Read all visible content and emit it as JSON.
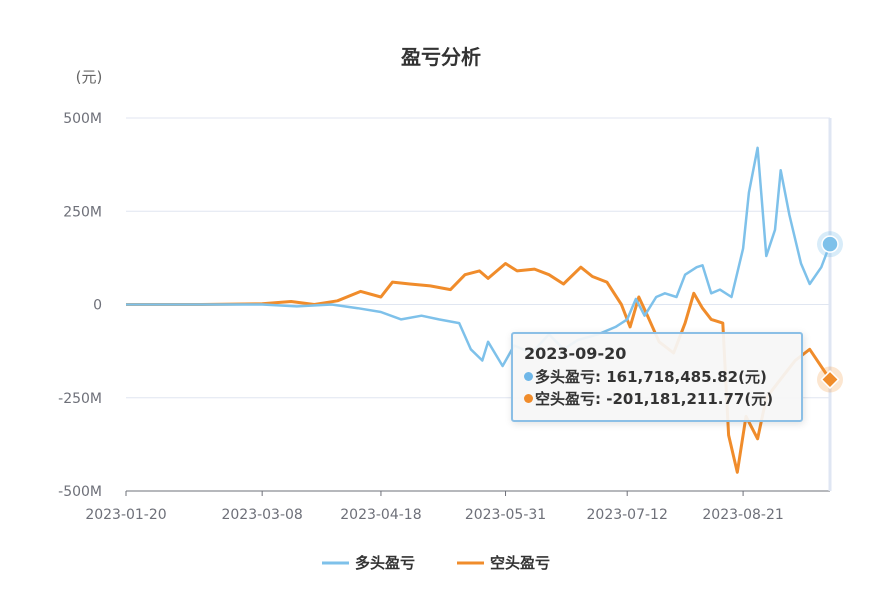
{
  "chart_data": {
    "type": "line",
    "title": "盈亏分析",
    "unit_label": "(元)",
    "ylim": [
      -500000000,
      500000000
    ],
    "y_ticks": [
      {
        "value": 500000000,
        "label": "500M"
      },
      {
        "value": 250000000,
        "label": "250M"
      },
      {
        "value": 0,
        "label": "0"
      },
      {
        "value": -250000000,
        "label": "-250M"
      },
      {
        "value": -500000000,
        "label": "-500M"
      }
    ],
    "x_range": [
      "2023-01-20",
      "2023-09-20"
    ],
    "x_ticks": [
      "2023-01-20",
      "2023-03-08",
      "2023-04-18",
      "2023-05-31",
      "2023-07-12",
      "2023-08-21"
    ],
    "series": [
      {
        "name": "多头盈亏",
        "color": "#7ec1ea",
        "points": [
          [
            "2023-01-20",
            0
          ],
          [
            "2023-02-15",
            0
          ],
          [
            "2023-03-08",
            0
          ],
          [
            "2023-03-20",
            -5000000
          ],
          [
            "2023-04-01",
            0
          ],
          [
            "2023-04-10",
            -10000000
          ],
          [
            "2023-04-18",
            -20000000
          ],
          [
            "2023-04-25",
            -40000000
          ],
          [
            "2023-05-02",
            -30000000
          ],
          [
            "2023-05-08",
            -40000000
          ],
          [
            "2023-05-15",
            -50000000
          ],
          [
            "2023-05-19",
            -120000000
          ],
          [
            "2023-05-23",
            -150000000
          ],
          [
            "2023-05-25",
            -100000000
          ],
          [
            "2023-05-30",
            -165000000
          ],
          [
            "2023-06-03",
            -110000000
          ],
          [
            "2023-06-09",
            -130000000
          ],
          [
            "2023-06-15",
            -80000000
          ],
          [
            "2023-06-20",
            -120000000
          ],
          [
            "2023-06-25",
            -95000000
          ],
          [
            "2023-07-02",
            -80000000
          ],
          [
            "2023-07-08",
            -60000000
          ],
          [
            "2023-07-12",
            -40000000
          ],
          [
            "2023-07-15",
            15000000
          ],
          [
            "2023-07-18",
            -30000000
          ],
          [
            "2023-07-22",
            20000000
          ],
          [
            "2023-07-25",
            30000000
          ],
          [
            "2023-07-29",
            20000000
          ],
          [
            "2023-08-01",
            80000000
          ],
          [
            "2023-08-05",
            100000000
          ],
          [
            "2023-08-07",
            105000000
          ],
          [
            "2023-08-10",
            30000000
          ],
          [
            "2023-08-13",
            40000000
          ],
          [
            "2023-08-17",
            20000000
          ],
          [
            "2023-08-21",
            150000000
          ],
          [
            "2023-08-23",
            300000000
          ],
          [
            "2023-08-26",
            420000000
          ],
          [
            "2023-08-29",
            130000000
          ],
          [
            "2023-09-01",
            200000000
          ],
          [
            "2023-09-03",
            360000000
          ],
          [
            "2023-09-06",
            240000000
          ],
          [
            "2023-09-10",
            110000000
          ],
          [
            "2023-09-13",
            55000000
          ],
          [
            "2023-09-17",
            100000000
          ],
          [
            "2023-09-20",
            161718485.82
          ]
        ]
      },
      {
        "name": "空头盈亏",
        "color": "#f08c2b",
        "points": [
          [
            "2023-01-20",
            0
          ],
          [
            "2023-02-15",
            0
          ],
          [
            "2023-03-08",
            2000000
          ],
          [
            "2023-03-18",
            8000000
          ],
          [
            "2023-03-26",
            0
          ],
          [
            "2023-04-03",
            10000000
          ],
          [
            "2023-04-11",
            35000000
          ],
          [
            "2023-04-18",
            20000000
          ],
          [
            "2023-04-22",
            60000000
          ],
          [
            "2023-04-28",
            55000000
          ],
          [
            "2023-05-05",
            50000000
          ],
          [
            "2023-05-12",
            40000000
          ],
          [
            "2023-05-17",
            80000000
          ],
          [
            "2023-05-22",
            90000000
          ],
          [
            "2023-05-25",
            70000000
          ],
          [
            "2023-05-31",
            110000000
          ],
          [
            "2023-06-04",
            90000000
          ],
          [
            "2023-06-10",
            95000000
          ],
          [
            "2023-06-15",
            80000000
          ],
          [
            "2023-06-20",
            55000000
          ],
          [
            "2023-06-26",
            100000000
          ],
          [
            "2023-06-30",
            75000000
          ],
          [
            "2023-07-05",
            60000000
          ],
          [
            "2023-07-10",
            0
          ],
          [
            "2023-07-13",
            -60000000
          ],
          [
            "2023-07-16",
            20000000
          ],
          [
            "2023-07-19",
            -30000000
          ],
          [
            "2023-07-23",
            -100000000
          ],
          [
            "2023-07-28",
            -130000000
          ],
          [
            "2023-08-01",
            -50000000
          ],
          [
            "2023-08-04",
            30000000
          ],
          [
            "2023-08-07",
            -10000000
          ],
          [
            "2023-08-10",
            -40000000
          ],
          [
            "2023-08-14",
            -50000000
          ],
          [
            "2023-08-16",
            -350000000
          ],
          [
            "2023-08-19",
            -450000000
          ],
          [
            "2023-08-22",
            -300000000
          ],
          [
            "2023-08-26",
            -360000000
          ],
          [
            "2023-08-29",
            -250000000
          ],
          [
            "2023-09-03",
            -200000000
          ],
          [
            "2023-09-08",
            -150000000
          ],
          [
            "2023-09-13",
            -120000000
          ],
          [
            "2023-09-20",
            -201181211.77
          ]
        ]
      }
    ],
    "legend_position": "bottom-center",
    "grid": true,
    "tooltip": {
      "date": "2023-09-20",
      "rows": [
        {
          "label": "多头盈亏: 161,718,485.82(元)",
          "color": "#6fb7e8"
        },
        {
          "label": "空头盈亏: -201,181,211.77(元)",
          "color": "#f08c2b"
        }
      ]
    }
  }
}
